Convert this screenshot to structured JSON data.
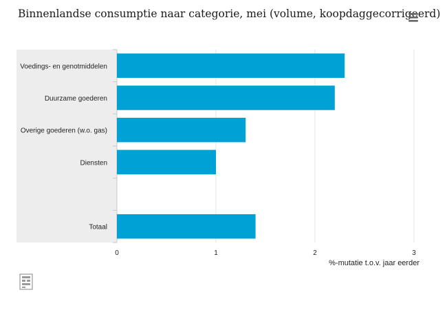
{
  "title": "Binnenlandse consumptie naar categorie, mei (volume, koopdaggecorrigeerd)",
  "menu_icon": "hamburger-menu-icon",
  "logo_icon": "cbs-logo-icon",
  "colors": {
    "bar": "#00a1d5",
    "category_band": "#ededed",
    "grid": "#e4e4e4",
    "axis": "#c8c8c8",
    "text": "#222222"
  },
  "chart_data": {
    "type": "bar",
    "orientation": "horizontal",
    "categories": [
      "Voedings- en genotmiddelen",
      "Duurzame goederen",
      "Overige goederen (w.o. gas)",
      "Diensten",
      "",
      "Totaal"
    ],
    "values": [
      2.3,
      2.2,
      1.3,
      1.0,
      null,
      1.4
    ],
    "xlim": [
      0,
      3
    ],
    "xticks": [
      "0",
      "1",
      "2",
      "3"
    ],
    "xlabel": "%-mutatie t.o.v. jaar eerder",
    "grid": true,
    "legend": "none"
  }
}
